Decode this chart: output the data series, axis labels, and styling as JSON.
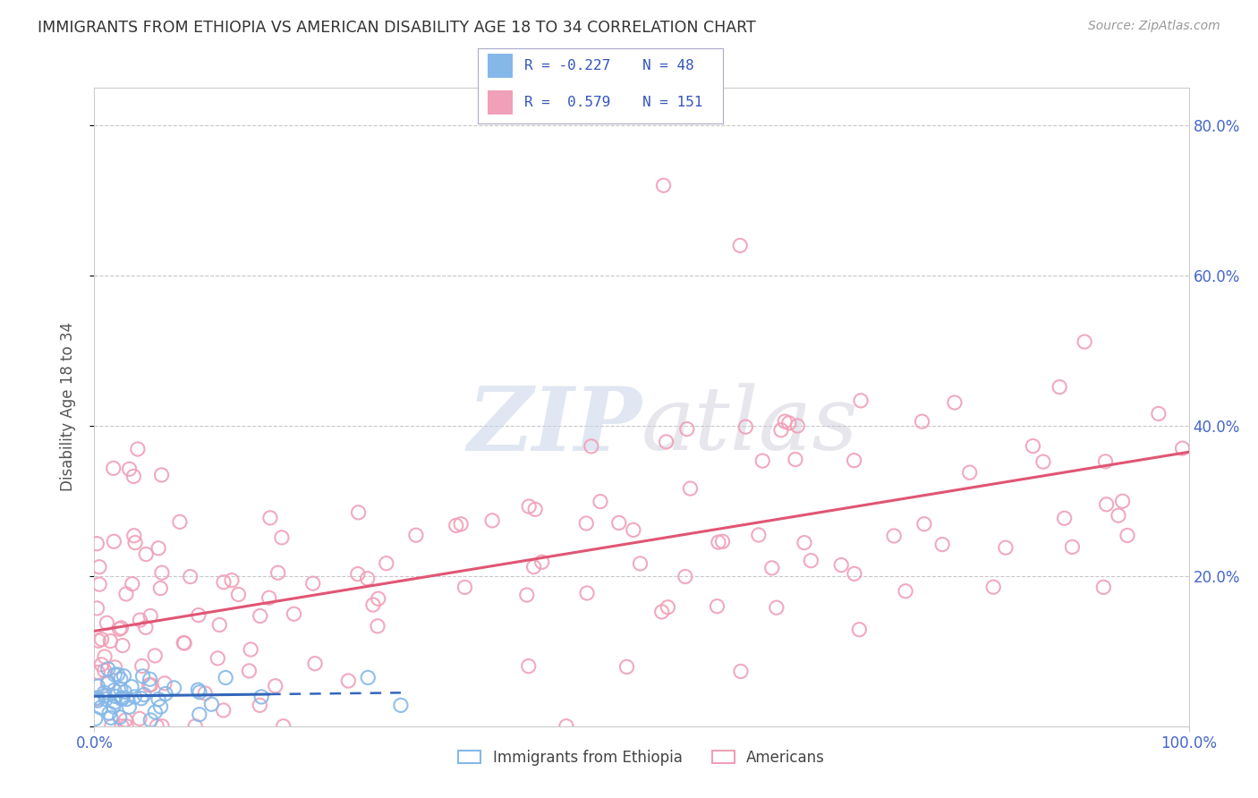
{
  "title": "IMMIGRANTS FROM ETHIOPIA VS AMERICAN DISABILITY AGE 18 TO 34 CORRELATION CHART",
  "source": "Source: ZipAtlas.com",
  "ylabel": "Disability Age 18 to 34",
  "legend_label_1": "Immigrants from Ethiopia",
  "legend_label_2": "Americans",
  "watermark_zip": "ZIP",
  "watermark_atlas": "atlas",
  "blue_color": "#85b8e8",
  "pink_color": "#f0a0b8",
  "blue_line_color": "#3366bb",
  "pink_line_color": "#e05575",
  "axis_color": "#4466cc",
  "title_color": "#333333",
  "background_color": "#ffffff",
  "grid_color": "#c8c8c8",
  "source_color": "#999999",
  "legend_r_color": "#3355bb",
  "ylim": [
    0.0,
    0.85
  ],
  "xlim": [
    0.0,
    1.0
  ],
  "y_ticks": [
    0.0,
    0.2,
    0.4,
    0.6,
    0.8
  ],
  "y_tick_labels_right": [
    "",
    "20.0%",
    "40.0%",
    "60.0%",
    "80.0%"
  ]
}
